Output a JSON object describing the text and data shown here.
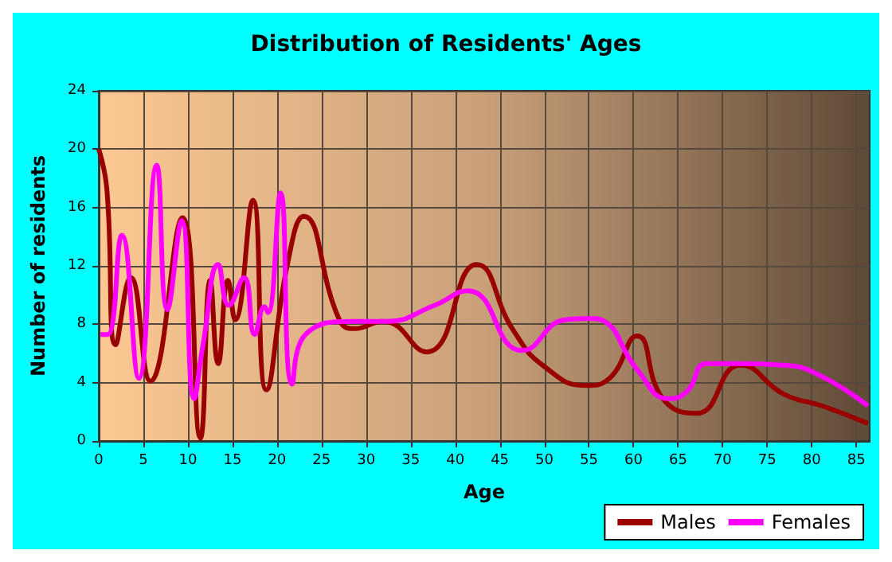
{
  "chart_data": {
    "type": "line",
    "title": "Distribution of Residents' Ages",
    "xlabel": "Age",
    "ylabel": "Number of residents",
    "xlim": [
      0,
      86.5
    ],
    "xticks": [
      0,
      5,
      10,
      15,
      20,
      25,
      30,
      35,
      40,
      45,
      50,
      55,
      60,
      65,
      70,
      75,
      80,
      85
    ],
    "ylim": [
      0,
      24
    ],
    "yticks": [
      0,
      4,
      8,
      12,
      16,
      20,
      24
    ],
    "grid": true,
    "legend": "bottom right",
    "marker": "none",
    "line_style": "solid",
    "series": [
      {
        "name": "Males",
        "color": "#990000",
        "x": [
          0,
          0.9,
          1.9,
          3.6,
          5.8,
          9.4,
          11.4,
          12.5,
          13.4,
          14.5,
          15.3,
          17.3,
          18.8,
          21.2,
          23,
          27,
          28.7,
          31.9,
          36.8,
          42.4,
          46.5,
          50,
          54.7,
          57.3,
          60.4,
          63.3,
          67.1,
          72,
          76.9,
          81.2,
          86.3
        ],
        "values": [
          20,
          17.3,
          6.6,
          11.2,
          4.1,
          15.3,
          0.2,
          11,
          5.3,
          11,
          8.3,
          16.5,
          3.5,
          12.2,
          15.4,
          8.3,
          7.7,
          8.2,
          6.1,
          12.1,
          7.6,
          5.1,
          3.8,
          4.3,
          7.2,
          2.9,
          1.9,
          5.2,
          3.2,
          2.4,
          1.2
        ]
      },
      {
        "name": "Females",
        "color": "#ff00ff",
        "x": [
          0.2,
          1,
          2.6,
          4.5,
          6.5,
          7.7,
          9.3,
          10.7,
          11.7,
          13.4,
          14.6,
          16.3,
          17.5,
          18.6,
          19,
          20.4,
          21.7,
          23.2,
          28.7,
          32.2,
          37.7,
          41.4,
          47.5,
          52.3,
          55.2,
          56.4,
          60.4,
          63.9,
          66,
          68.2,
          72,
          76.9,
          81.2,
          86.3
        ],
        "values": [
          7.3,
          7.3,
          14.1,
          4.3,
          18.9,
          9,
          15.1,
          2.9,
          6.6,
          12.1,
          9.3,
          11.2,
          7.3,
          9.2,
          8.8,
          17,
          3.9,
          7.3,
          8.2,
          8.2,
          9.3,
          10.3,
          6.2,
          8.3,
          8.4,
          8.3,
          4.9,
          2.9,
          3.4,
          5.3,
          5.3,
          5.2,
          4.4,
          2.4
        ]
      }
    ]
  }
}
